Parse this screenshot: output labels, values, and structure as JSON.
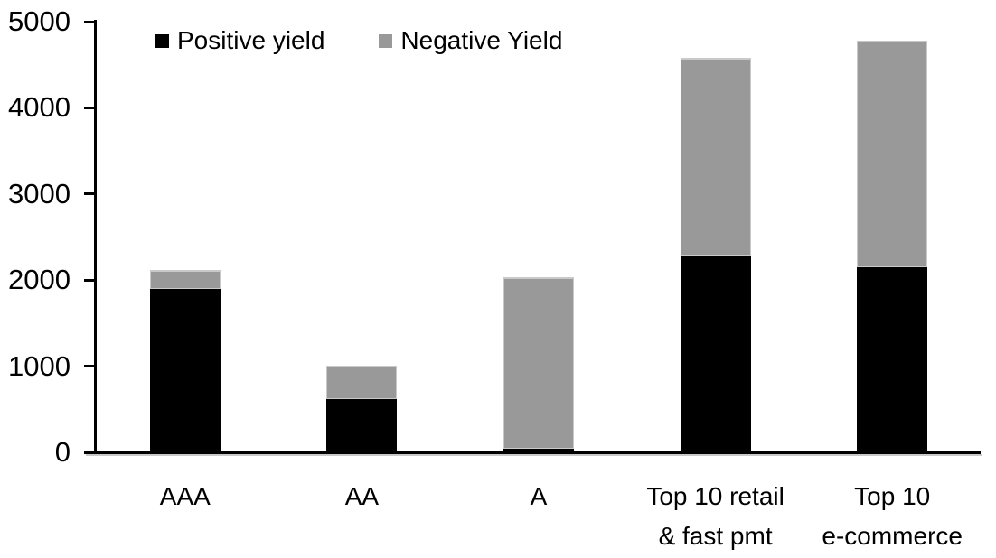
{
  "chart_data": {
    "type": "bar",
    "stacked": true,
    "title": "",
    "xlabel": "",
    "ylabel": "",
    "categories": [
      "AAA",
      "AA",
      "A",
      "Top 10 retail\n& fast pmt",
      "Top 10\ne-commerce"
    ],
    "series": [
      {
        "name": "Positive yield",
        "color": "#000000",
        "values": [
          1900,
          620,
          40,
          2290,
          2150
        ]
      },
      {
        "name": "Negative Yield",
        "color": "#999999",
        "values": [
          220,
          390,
          1990,
          2290,
          2630
        ]
      }
    ],
    "totals": [
      2120,
      1010,
      2030,
      4580,
      4780
    ],
    "ylim": [
      0,
      5000
    ],
    "yticks": [
      0,
      1000,
      2000,
      3000,
      4000,
      5000
    ],
    "grid": false,
    "legend_position": "top"
  },
  "colors": {
    "positive": "#000000",
    "negative": "#999999",
    "axis": "#000000",
    "background": "#ffffff",
    "segment_highlight": "#c9c9c9"
  }
}
